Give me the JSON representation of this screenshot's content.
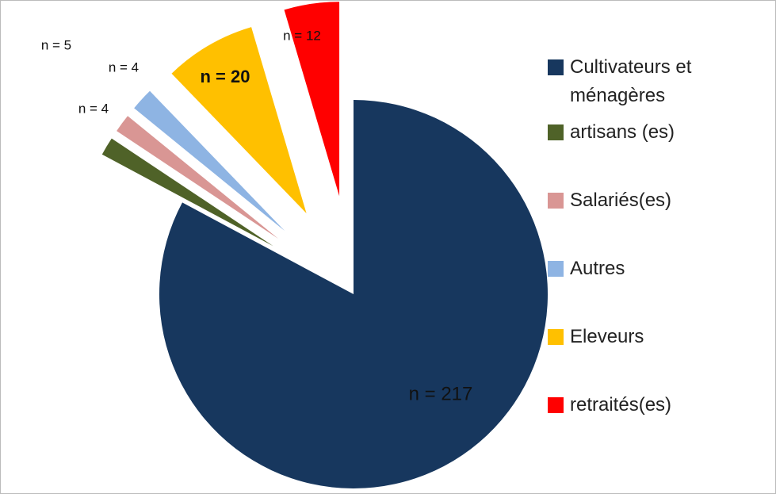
{
  "chart_data": {
    "type": "pie",
    "categories": [
      "Cultivateurs et ménagères",
      "artisans (es)",
      "Salariés(es)",
      "Autres",
      "Eleveurs",
      "retraités(es)"
    ],
    "values": [
      217,
      4,
      4,
      5,
      20,
      12
    ],
    "value_labels": [
      "n = 217",
      "n = 4",
      "n = 4",
      "n = 5",
      "n = 20",
      "n = 12"
    ],
    "colors": [
      "#17375e",
      "#4f6228",
      "#d99694",
      "#8eb4e3",
      "#ffc000",
      "#ff0000"
    ]
  }
}
